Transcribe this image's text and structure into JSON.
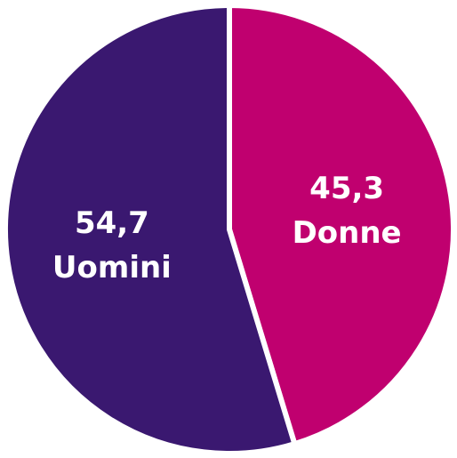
{
  "chart_data": {
    "type": "pie",
    "categories": [
      "Donne",
      "Uomini"
    ],
    "values": [
      45.3,
      54.7
    ],
    "value_labels": [
      "45,3",
      "54,7"
    ],
    "colors": [
      "#c0006f",
      "#3a1870"
    ]
  }
}
